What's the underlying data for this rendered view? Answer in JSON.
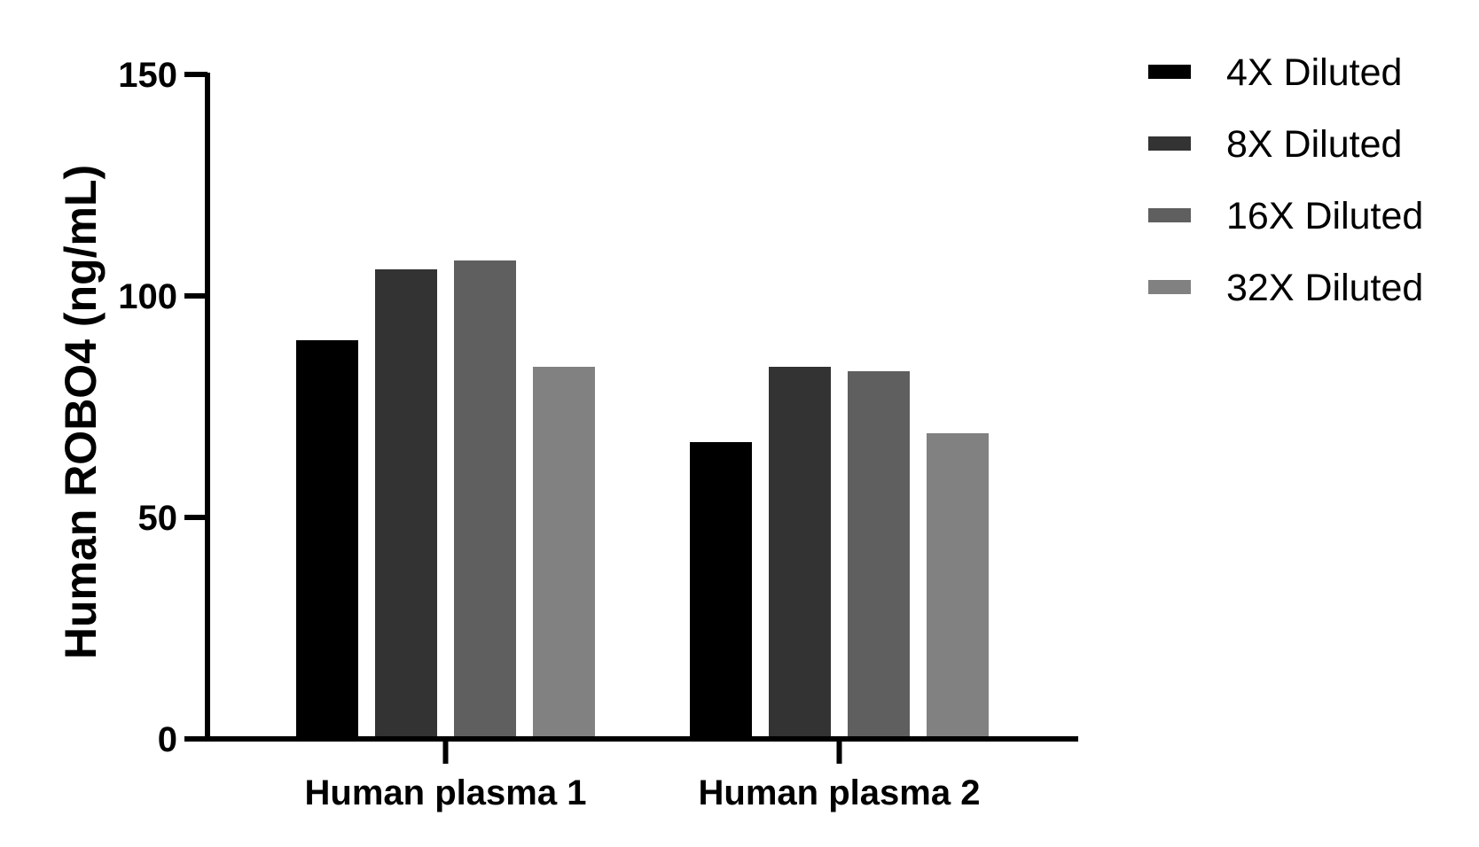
{
  "chart_data": {
    "type": "bar",
    "categories": [
      "Human plasma 1",
      "Human plasma 2"
    ],
    "series": [
      {
        "name": "4X Diluted",
        "color": "#000000",
        "values": [
          90,
          67
        ]
      },
      {
        "name": "8X Diluted",
        "color": "#333333",
        "values": [
          106,
          84
        ]
      },
      {
        "name": "16X Diluted",
        "color": "#5f5f5f",
        "values": [
          108,
          83
        ]
      },
      {
        "name": "32X Diluted",
        "color": "#818181",
        "values": [
          84,
          69
        ]
      }
    ],
    "title": "",
    "xlabel": "",
    "ylabel": "Human ROBO4  (ng/mL)",
    "ylim": [
      0,
      150
    ],
    "yticks": [
      0,
      50,
      100,
      150
    ],
    "grid": false,
    "legend_position": "top-right"
  }
}
